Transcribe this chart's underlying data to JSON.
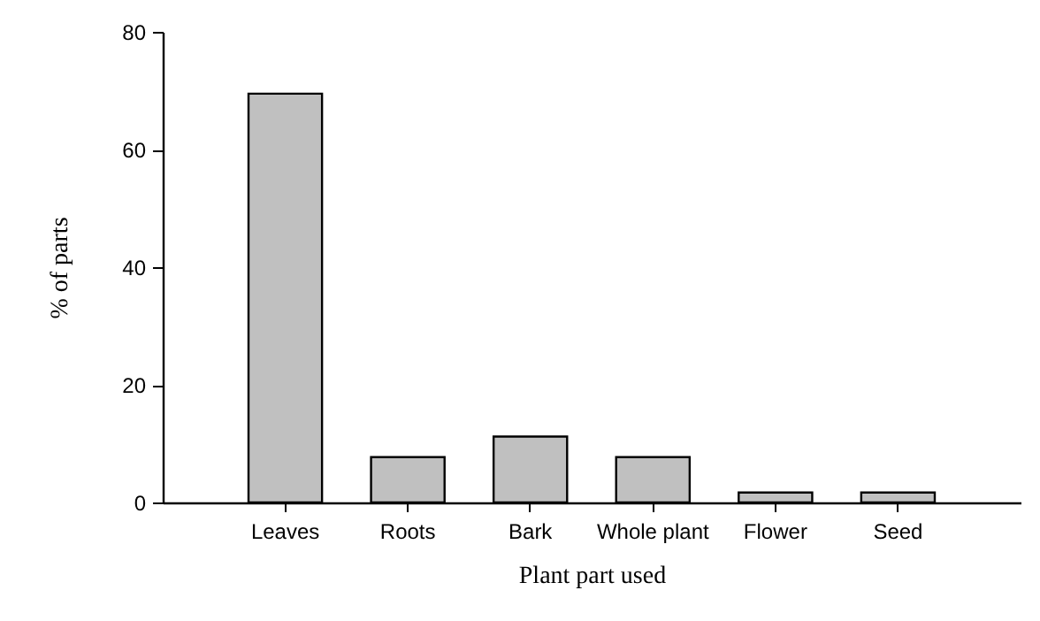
{
  "chart_data": {
    "type": "bar",
    "xlabel": "Plant part used",
    "ylabel": "% of parts",
    "categories": [
      "Leaves",
      "Roots",
      "Bark",
      "Whole plant",
      "Flower",
      "Seed"
    ],
    "values": [
      69.5,
      7.7,
      11.2,
      7.7,
      1.7,
      1.7
    ],
    "color": "#c0c0c0",
    "ylim": [
      0,
      80
    ],
    "yticks": [
      0,
      20,
      40,
      60,
      80
    ],
    "grid": false
  }
}
